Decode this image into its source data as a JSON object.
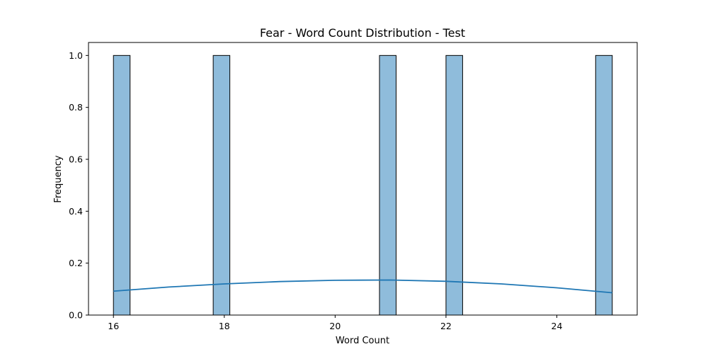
{
  "chart_data": {
    "type": "bar",
    "title": "Fear - Word Count Distribution - Test",
    "xlabel": "Word Count",
    "ylabel": "Frequency",
    "xlim": [
      15.55,
      25.45
    ],
    "ylim": [
      0,
      1.05
    ],
    "x_ticks": [
      16,
      18,
      20,
      22,
      24
    ],
    "y_ticks": [
      0.0,
      0.2,
      0.4,
      0.6,
      0.8,
      1.0
    ],
    "x_tick_labels": [
      "16",
      "18",
      "20",
      "22",
      "24"
    ],
    "y_tick_labels": [
      "0.0",
      "0.2",
      "0.4",
      "0.6",
      "0.8",
      "1.0"
    ],
    "bins": [
      {
        "x0": 16.0,
        "x1": 16.3,
        "count": 1
      },
      {
        "x0": 17.8,
        "x1": 18.1,
        "count": 1
      },
      {
        "x0": 20.8,
        "x1": 21.1,
        "count": 1
      },
      {
        "x0": 22.0,
        "x1": 22.3,
        "count": 1
      },
      {
        "x0": 24.7,
        "x1": 25.0,
        "count": 1
      }
    ],
    "kde": {
      "x": [
        16,
        17,
        18,
        19,
        20,
        21,
        22,
        23,
        24,
        25
      ],
      "y": [
        0.092,
        0.108,
        0.12,
        0.129,
        0.134,
        0.135,
        0.13,
        0.12,
        0.105,
        0.086
      ]
    },
    "bar_color": "#8fbcdb",
    "bar_edge_color": "#000000",
    "kde_color": "#1f77b4",
    "grid": false,
    "legend": false
  }
}
